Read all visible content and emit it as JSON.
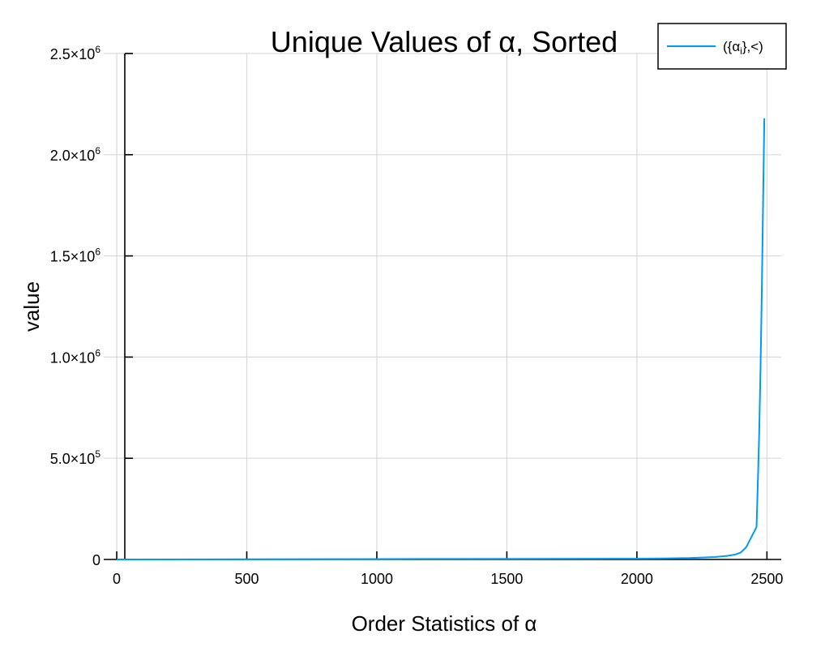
{
  "colors": {
    "series": "#009AF9",
    "grid": "#d9d9d9",
    "axis": "#000000",
    "background": "#ffffff"
  },
  "chart_data": {
    "type": "line",
    "title": "Unique Values of α, Sorted",
    "xlabel": "Order Statistics of α",
    "ylabel": "value",
    "xlim": [
      -50,
      2555
    ],
    "ylim": [
      0,
      2500000
    ],
    "grid": true,
    "legend_placement": "top-right",
    "x_ticks": [
      {
        "value": 0,
        "label": "0"
      },
      {
        "value": 500,
        "label": "500"
      },
      {
        "value": 1000,
        "label": "1000"
      },
      {
        "value": 1500,
        "label": "1500"
      },
      {
        "value": 2000,
        "label": "2000"
      },
      {
        "value": 2500,
        "label": "2500"
      }
    ],
    "y_ticks": [
      {
        "value": 0,
        "label": "0",
        "exponent": ""
      },
      {
        "value": 500000,
        "label": "5.0×10",
        "exponent": "5"
      },
      {
        "value": 1000000,
        "label": "1.0×10",
        "exponent": "6"
      },
      {
        "value": 1500000,
        "label": "1.5×10",
        "exponent": "6"
      },
      {
        "value": 2000000,
        "label": "2.0×10",
        "exponent": "6"
      },
      {
        "value": 2500000,
        "label": "2.5×10",
        "exponent": "6"
      }
    ],
    "series": [
      {
        "name": "({αi},<)",
        "legend_main": "({α",
        "legend_sub": "i",
        "legend_tail": "},<)",
        "color": "#009AF9",
        "x": [
          0,
          500,
          1000,
          1500,
          2000,
          2100,
          2200,
          2300,
          2350,
          2380,
          2400,
          2420,
          2440,
          2460,
          2465,
          2470,
          2475,
          2480,
          2485,
          2490
        ],
        "y": [
          0,
          1000,
          2000,
          3000,
          4000,
          5000,
          7000,
          12000,
          18000,
          25000,
          35000,
          60000,
          110000,
          160000,
          380000,
          610000,
          920000,
          1300000,
          1750000,
          2180000
        ]
      }
    ]
  }
}
